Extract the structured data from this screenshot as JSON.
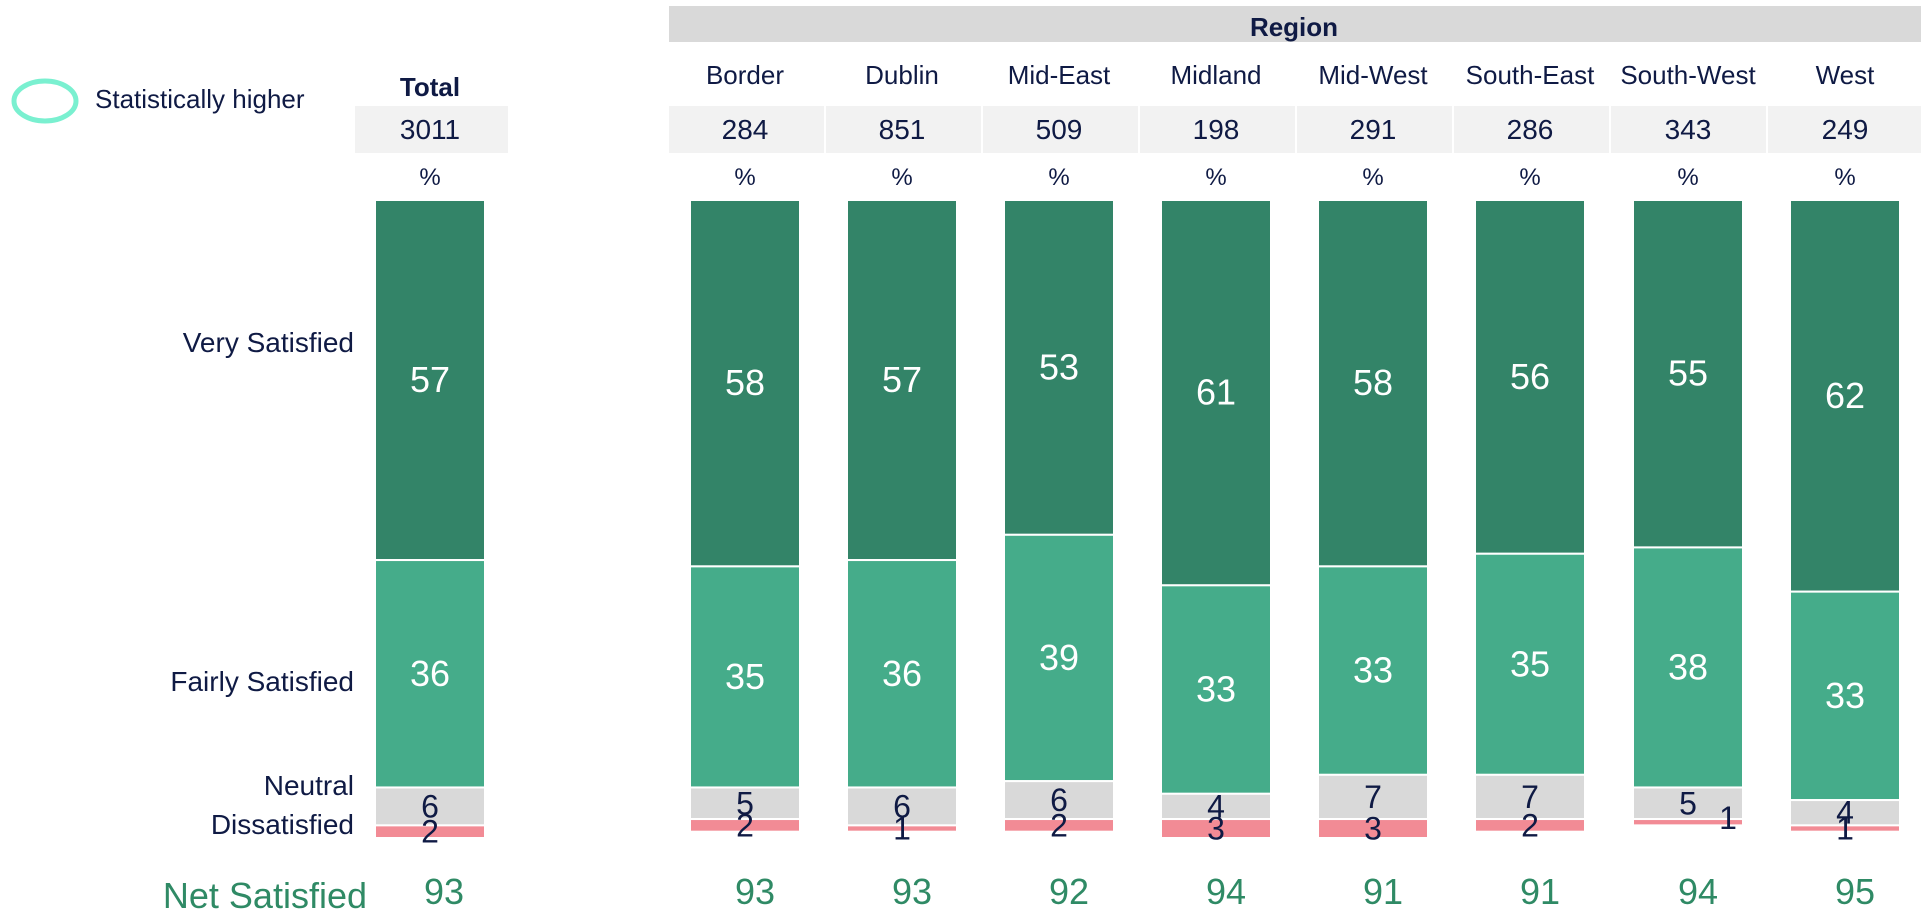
{
  "legend": {
    "label": "Statistically higher",
    "color": "#7af0d0"
  },
  "header": {
    "group_title": "Region",
    "base_unit": "%",
    "net_label": "Net Satisfied"
  },
  "colors": {
    "very_satisfied": "#338468",
    "fairly_satisfied": "#45ac8a",
    "neutral": "#d9d9d9",
    "dissatisfied": "#f28b95",
    "header_fill": "#f2f2f2",
    "region_bar": "#d9d9d9",
    "net_text": "#2f8a65",
    "label_text": "#0f1a44"
  },
  "chart_data": {
    "type": "bar",
    "stacked": true,
    "orientation": "vertical",
    "categories": [
      "Total",
      "Border",
      "Dublin",
      "Mid-East",
      "Midland",
      "Mid-West",
      "South-East",
      "South-West",
      "West"
    ],
    "bases": [
      "3011",
      "284",
      "851",
      "509",
      "198",
      "291",
      "286",
      "343",
      "249"
    ],
    "unit": "%",
    "series": [
      {
        "name": "Very Satisfied",
        "values": [
          57,
          58,
          57,
          53,
          61,
          58,
          56,
          55,
          62
        ]
      },
      {
        "name": "Fairly Satisfied",
        "values": [
          36,
          35,
          36,
          39,
          33,
          33,
          35,
          38,
          33
        ]
      },
      {
        "name": "Neutral",
        "values": [
          6,
          5,
          6,
          6,
          4,
          7,
          7,
          5,
          4
        ]
      },
      {
        "name": "Dissatisfied",
        "values": [
          2,
          2,
          1,
          2,
          3,
          3,
          2,
          1,
          1
        ]
      }
    ],
    "net_satisfied": [
      93,
      93,
      93,
      92,
      94,
      91,
      91,
      94,
      95
    ],
    "group_label": "Region",
    "ylim": [
      0,
      100
    ]
  }
}
